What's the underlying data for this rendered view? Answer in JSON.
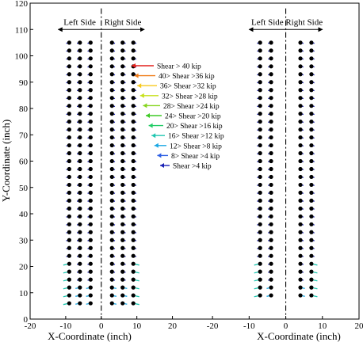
{
  "chart_data": {
    "type": "scatter",
    "xlabel": "X-Coordinate (inch)",
    "ylabel": "Y-Coordinate (inch)",
    "ylim": [
      0,
      120
    ],
    "yticks": [
      0,
      10,
      20,
      30,
      40,
      50,
      60,
      70,
      80,
      90,
      100,
      110,
      120
    ],
    "panels": [
      {
        "xlim": [
          -20,
          25
        ],
        "xticks": [
          -20,
          -10,
          0,
          10,
          20
        ],
        "column_x": [
          -9,
          -6,
          -3,
          3,
          6,
          9
        ],
        "row_y": [
          6,
          9,
          12,
          15,
          18,
          21,
          24,
          27,
          30,
          33,
          36,
          39,
          42,
          45,
          48,
          51,
          54,
          57,
          60,
          63,
          66,
          69,
          72,
          75,
          78,
          81,
          84,
          87,
          90,
          93,
          96,
          99,
          102,
          105
        ],
        "centerline_x": 0,
        "side_labels": {
          "left": "Left Side",
          "right": "Right Side"
        }
      },
      {
        "xlim": [
          -25,
          20
        ],
        "xticks": [
          -20,
          -10,
          0,
          10,
          20
        ],
        "column_x": [
          -7,
          -4,
          4,
          7
        ],
        "row_y": [
          9,
          12,
          15,
          18,
          21,
          24,
          27,
          30,
          33,
          36,
          39,
          42,
          45,
          48,
          51,
          54,
          57,
          60,
          63,
          66,
          69,
          72,
          75,
          78,
          81,
          84,
          87,
          90,
          93,
          96,
          99,
          102,
          105
        ],
        "centerline_x": 0,
        "side_labels": {
          "left": "Left Side",
          "right": "Right Side"
        }
      }
    ],
    "legend": [
      {
        "label": "Shear > 40 kip",
        "color": "#e4211b"
      },
      {
        "label": "40> Shear >36 kip",
        "color": "#f07e1a"
      },
      {
        "label": "36> Shear >32 kip",
        "color": "#f7c81b"
      },
      {
        "label": "32> Shear >28 kip",
        "color": "#c7e11c"
      },
      {
        "label": "28> Shear >24 kip",
        "color": "#86d51f"
      },
      {
        "label": "24> Shear >20 kip",
        "color": "#3fca26"
      },
      {
        "label": "20> Shear >16 kip",
        "color": "#22cc66"
      },
      {
        "label": "16> Shear >12 kip",
        "color": "#1fc6b0"
      },
      {
        "label": "12> Shear >8 kip",
        "color": "#1aa7e4"
      },
      {
        "label": "8> Shear >4 kip",
        "color": "#2d5fe4"
      },
      {
        "label": "Shear >4 kip",
        "color": "#1a22b5"
      }
    ],
    "point_color": "#000000"
  }
}
